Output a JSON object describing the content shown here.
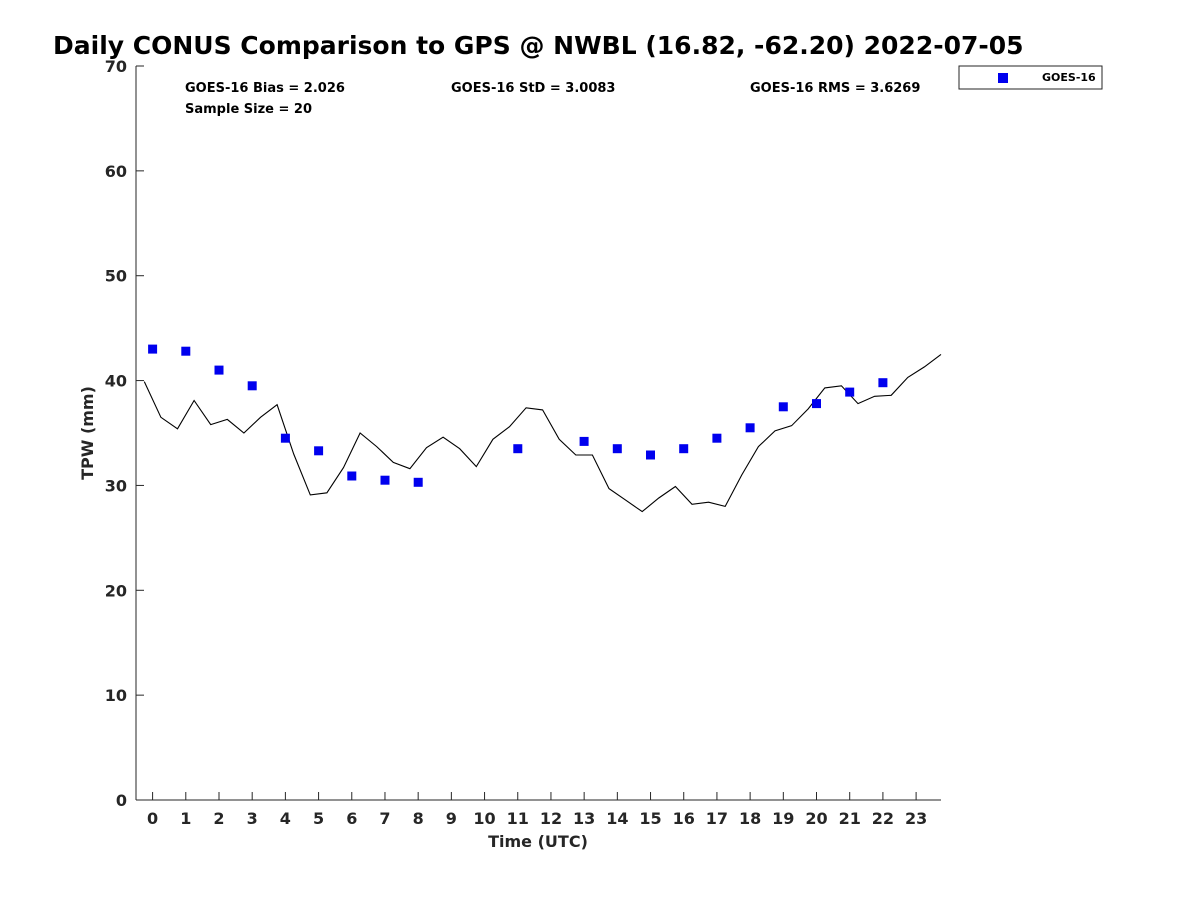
{
  "chart_data": {
    "type": "scatter",
    "title": "Daily CONUS Comparison to GPS @ NWBL (16.82, -62.20) 2022-07-05",
    "xlabel": "Time (UTC)",
    "ylabel": "TPW (mm)",
    "xlim": [
      -0.5,
      23.75
    ],
    "ylim": [
      0,
      70
    ],
    "x_ticks": [
      "0",
      "1",
      "2",
      "3",
      "4",
      "5",
      "6",
      "7",
      "8",
      "9",
      "10",
      "11",
      "12",
      "13",
      "14",
      "15",
      "16",
      "17",
      "18",
      "19",
      "20",
      "21",
      "22",
      "23"
    ],
    "y_ticks": [
      "0",
      "10",
      "20",
      "30",
      "40",
      "50",
      "60",
      "70"
    ],
    "grid": false,
    "legend_position": "top-right, outside plot",
    "stats": {
      "bias": "GOES-16 Bias = 2.026",
      "std": "GOES-16 StD = 3.0083",
      "rms": "GOES-16 RMS = 3.6269",
      "sample": "Sample Size = 20"
    },
    "series": [
      {
        "name": "GOES-16",
        "kind": "scatter",
        "marker": "square",
        "color": "#0000ee",
        "x": [
          0,
          1,
          2,
          3,
          4,
          5,
          6,
          7,
          8,
          11,
          13,
          14,
          15,
          16,
          17,
          18,
          19,
          20,
          21,
          22
        ],
        "y": [
          43.0,
          42.8,
          41.0,
          39.5,
          34.5,
          33.3,
          30.9,
          30.5,
          30.3,
          33.5,
          34.2,
          33.5,
          32.9,
          33.5,
          34.5,
          35.5,
          37.5,
          37.8,
          38.9,
          39.8
        ]
      },
      {
        "kind": "line",
        "color": "#000000",
        "x": [
          -0.25,
          0.25,
          0.75,
          1.25,
          1.75,
          2.25,
          2.75,
          3.25,
          3.75,
          4.25,
          4.75,
          5.25,
          5.75,
          6.25,
          6.75,
          7.25,
          7.75,
          8.25,
          8.75,
          9.25,
          9.75,
          10.25,
          10.75,
          11.25,
          11.75,
          12.25,
          12.75,
          13.25,
          13.75,
          14.25,
          14.75,
          15.25,
          15.75,
          16.25,
          16.75,
          17.25,
          17.75,
          18.25,
          18.75,
          19.25,
          19.75,
          20.25,
          20.75,
          21.25,
          21.75,
          22.25,
          22.75,
          23.25,
          23.75
        ],
        "y": [
          39.9,
          36.5,
          35.4,
          38.1,
          35.8,
          36.3,
          35.0,
          36.5,
          37.7,
          33.0,
          29.1,
          29.3,
          31.7,
          35.0,
          33.7,
          32.2,
          31.6,
          33.6,
          34.6,
          33.5,
          31.8,
          34.4,
          35.6,
          37.4,
          37.2,
          34.4,
          32.9,
          32.9,
          29.7,
          28.6,
          27.5,
          28.8,
          29.9,
          28.2,
          28.4,
          28.0,
          31.0,
          33.7,
          35.2,
          35.7,
          37.3,
          39.3,
          39.5,
          37.8,
          38.5,
          38.6,
          40.3,
          41.3,
          42.5
        ]
      }
    ]
  }
}
